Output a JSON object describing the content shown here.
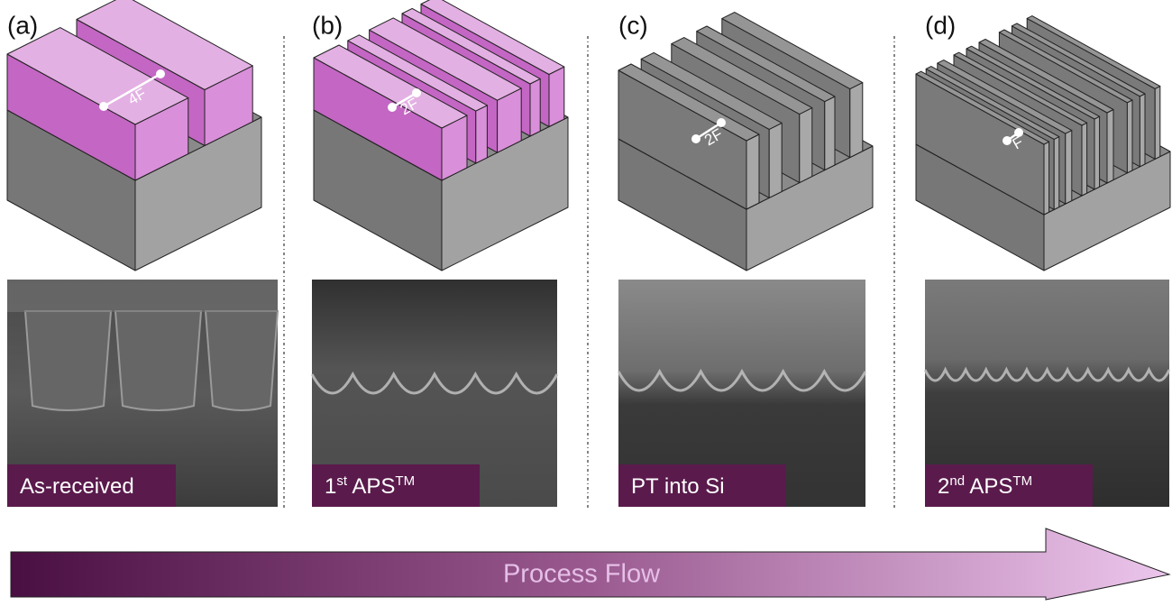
{
  "panels": [
    {
      "label": "(a)",
      "dimension": "4F",
      "caption": [
        {
          "text": "As-received"
        }
      ]
    },
    {
      "label": "(b)",
      "dimension": "2F",
      "caption": [
        {
          "text": "1"
        },
        {
          "sup": "st"
        },
        {
          "text": " APS"
        },
        {
          "sup": "TM"
        }
      ]
    },
    {
      "label": "(c)",
      "dimension": "2F",
      "caption": [
        {
          "text": "PT into Si"
        }
      ]
    },
    {
      "label": "(d)",
      "dimension": "F",
      "caption": [
        {
          "text": "2"
        },
        {
          "sup": "nd"
        },
        {
          "text": " APS"
        },
        {
          "sup": "TM"
        }
      ]
    }
  ],
  "arrow_label": "Process Flow"
}
